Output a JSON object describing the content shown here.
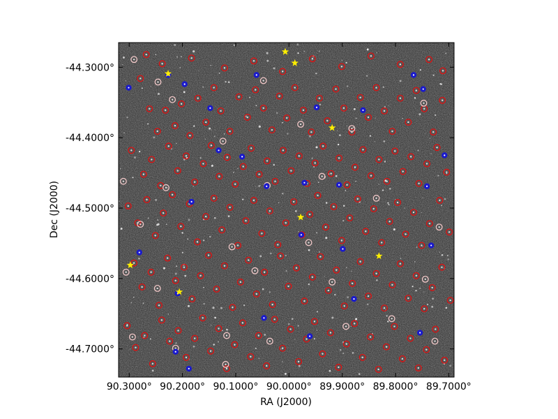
{
  "chart_data": {
    "type": "scatter",
    "title": "",
    "xlabel": "RA (J2000)",
    "ylabel": "Dec (J2000)",
    "xlim": [
      90.32,
      89.69
    ],
    "ylim": [
      -44.74,
      -44.265
    ],
    "x_ticks": [
      {
        "value": 90.3,
        "label": "90.3000°"
      },
      {
        "value": 90.2,
        "label": "90.2000°"
      },
      {
        "value": 90.1,
        "label": "90.1000°"
      },
      {
        "value": 90.0,
        "label": "90.0000°"
      },
      {
        "value": 89.9,
        "label": "89.9000°"
      },
      {
        "value": 89.8,
        "label": "89.8000°"
      },
      {
        "value": 89.7,
        "label": "89.7000°"
      }
    ],
    "y_ticks": [
      {
        "value": -44.3,
        "label": "-44.3000°"
      },
      {
        "value": -44.4,
        "label": "-44.4000°"
      },
      {
        "value": -44.5,
        "label": "-44.5000°"
      },
      {
        "value": -44.6,
        "label": "-44.6000°"
      },
      {
        "value": -44.7,
        "label": "-44.7000°"
      }
    ],
    "background": "sky image (grayscale noise)",
    "legend": "none",
    "grid": false,
    "series": [
      {
        "marker": "circle",
        "color": "#e01010",
        "points": [
          [
            90.279,
            -44.316
          ],
          [
            90.262,
            -44.359
          ],
          [
            90.247,
            -44.391
          ],
          [
            90.232,
            -44.361
          ],
          [
            90.214,
            -44.383
          ],
          [
            90.202,
            -44.352
          ],
          [
            90.186,
            -44.397
          ],
          [
            90.171,
            -44.344
          ],
          [
            90.156,
            -44.378
          ],
          [
            90.141,
            -44.329
          ],
          [
            90.128,
            -44.362
          ],
          [
            90.111,
            -44.391
          ],
          [
            90.094,
            -44.342
          ],
          [
            90.078,
            -44.371
          ],
          [
            90.063,
            -44.332
          ],
          [
            90.048,
            -44.358
          ],
          [
            90.032,
            -44.389
          ],
          [
            90.018,
            -44.341
          ],
          [
            90.004,
            -44.372
          ],
          [
            89.989,
            -44.329
          ],
          [
            89.973,
            -44.361
          ],
          [
            89.958,
            -44.392
          ],
          [
            89.943,
            -44.344
          ],
          [
            89.928,
            -44.376
          ],
          [
            89.912,
            -44.331
          ],
          [
            89.897,
            -44.358
          ],
          [
            89.882,
            -44.392
          ],
          [
            89.866,
            -44.343
          ],
          [
            89.851,
            -44.371
          ],
          [
            89.836,
            -44.329
          ],
          [
            89.821,
            -44.362
          ],
          [
            89.806,
            -44.391
          ],
          [
            89.791,
            -44.344
          ],
          [
            89.776,
            -44.378
          ],
          [
            89.761,
            -44.333
          ],
          [
            89.746,
            -44.359
          ],
          [
            89.729,
            -44.392
          ],
          [
            89.712,
            -44.347
          ],
          [
            90.296,
            -44.418
          ],
          [
            90.273,
            -44.452
          ],
          [
            90.258,
            -44.431
          ],
          [
            90.241,
            -44.468
          ],
          [
            90.226,
            -44.412
          ],
          [
            90.209,
            -44.447
          ],
          [
            90.193,
            -44.426
          ],
          [
            90.177,
            -44.463
          ],
          [
            90.161,
            -44.437
          ],
          [
            90.146,
            -44.411
          ],
          [
            90.131,
            -44.455
          ],
          [
            90.116,
            -44.428
          ],
          [
            90.101,
            -44.466
          ],
          [
            90.086,
            -44.441
          ],
          [
            90.071,
            -44.415
          ],
          [
            90.056,
            -44.452
          ],
          [
            90.041,
            -44.433
          ],
          [
            90.026,
            -44.462
          ],
          [
            90.011,
            -44.418
          ],
          [
            89.996,
            -44.447
          ],
          [
            89.981,
            -44.426
          ],
          [
            89.966,
            -44.465
          ],
          [
            89.951,
            -44.436
          ],
          [
            89.936,
            -44.412
          ],
          [
            89.921,
            -44.451
          ],
          [
            89.906,
            -44.429
          ],
          [
            89.891,
            -44.467
          ],
          [
            89.876,
            -44.442
          ],
          [
            89.861,
            -44.417
          ],
          [
            89.846,
            -44.454
          ],
          [
            89.831,
            -44.431
          ],
          [
            89.816,
            -44.462
          ],
          [
            89.801,
            -44.419
          ],
          [
            89.786,
            -44.448
          ],
          [
            89.771,
            -44.427
          ],
          [
            89.756,
            -44.465
          ],
          [
            89.741,
            -44.437
          ],
          [
            89.722,
            -44.414
          ],
          [
            89.704,
            -44.449
          ],
          [
            90.302,
            -44.497
          ],
          [
            90.284,
            -44.521
          ],
          [
            90.267,
            -44.488
          ],
          [
            90.251,
            -44.539
          ],
          [
            90.236,
            -44.507
          ],
          [
            90.219,
            -44.481
          ],
          [
            90.203,
            -44.526
          ],
          [
            90.187,
            -44.494
          ],
          [
            90.172,
            -44.548
          ],
          [
            90.156,
            -44.512
          ],
          [
            90.141,
            -44.486
          ],
          [
            90.126,
            -44.531
          ],
          [
            90.111,
            -44.499
          ],
          [
            90.096,
            -44.553
          ],
          [
            90.081,
            -44.518
          ],
          [
            90.066,
            -44.489
          ],
          [
            90.051,
            -44.536
          ],
          [
            90.036,
            -44.504
          ],
          [
            90.021,
            -44.552
          ],
          [
            90.006,
            -44.521
          ],
          [
            89.991,
            -44.491
          ],
          [
            89.976,
            -44.538
          ],
          [
            89.961,
            -44.509
          ],
          [
            89.946,
            -44.482
          ],
          [
            89.931,
            -44.527
          ],
          [
            89.916,
            -44.498
          ],
          [
            89.901,
            -44.546
          ],
          [
            89.886,
            -44.514
          ],
          [
            89.871,
            -44.487
          ],
          [
            89.856,
            -44.533
          ],
          [
            89.841,
            -44.501
          ],
          [
            89.826,
            -44.549
          ],
          [
            89.811,
            -44.519
          ],
          [
            89.796,
            -44.492
          ],
          [
            89.781,
            -44.537
          ],
          [
            89.766,
            -44.506
          ],
          [
            89.751,
            -44.553
          ],
          [
            89.736,
            -44.522
          ],
          [
            89.717,
            -44.489
          ],
          [
            89.699,
            -44.534
          ],
          [
            90.291,
            -44.578
          ],
          [
            90.276,
            -44.612
          ],
          [
            90.259,
            -44.591
          ],
          [
            90.244,
            -44.638
          ],
          [
            90.228,
            -44.571
          ],
          [
            90.213,
            -44.603
          ],
          [
            90.197,
            -44.584
          ],
          [
            90.182,
            -44.629
          ],
          [
            90.166,
            -44.596
          ],
          [
            90.151,
            -44.567
          ],
          [
            90.136,
            -44.615
          ],
          [
            90.121,
            -44.582
          ],
          [
            90.106,
            -44.641
          ],
          [
            90.091,
            -44.605
          ],
          [
            90.076,
            -44.574
          ],
          [
            90.061,
            -44.622
          ],
          [
            90.046,
            -44.591
          ],
          [
            90.031,
            -44.637
          ],
          [
            90.016,
            -44.568
          ],
          [
            90.001,
            -44.611
          ],
          [
            89.986,
            -44.585
          ],
          [
            89.971,
            -44.632
          ],
          [
            89.956,
            -44.598
          ],
          [
            89.941,
            -44.569
          ],
          [
            89.926,
            -44.617
          ],
          [
            89.911,
            -44.588
          ],
          [
            89.896,
            -44.639
          ],
          [
            89.881,
            -44.607
          ],
          [
            89.866,
            -44.576
          ],
          [
            89.851,
            -44.625
          ],
          [
            89.836,
            -44.593
          ],
          [
            89.821,
            -44.642
          ],
          [
            89.806,
            -44.609
          ],
          [
            89.791,
            -44.579
          ],
          [
            89.776,
            -44.628
          ],
          [
            89.761,
            -44.596
          ],
          [
            89.746,
            -44.643
          ],
          [
            89.731,
            -44.613
          ],
          [
            89.713,
            -44.584
          ],
          [
            89.697,
            -44.631
          ],
          [
            90.304,
            -44.667
          ],
          [
            90.288,
            -44.698
          ],
          [
            90.271,
            -44.681
          ],
          [
            90.256,
            -44.721
          ],
          [
            90.239,
            -44.659
          ],
          [
            90.224,
            -44.689
          ],
          [
            90.208,
            -44.674
          ],
          [
            90.193,
            -44.712
          ],
          [
            90.177,
            -44.685
          ],
          [
            90.162,
            -44.656
          ],
          [
            90.147,
            -44.703
          ],
          [
            90.132,
            -44.671
          ],
          [
            90.117,
            -44.728
          ],
          [
            90.102,
            -44.694
          ],
          [
            90.087,
            -44.663
          ],
          [
            90.072,
            -44.711
          ],
          [
            90.057,
            -44.681
          ],
          [
            90.042,
            -44.724
          ],
          [
            90.027,
            -44.658
          ],
          [
            90.012,
            -44.699
          ],
          [
            89.997,
            -44.672
          ],
          [
            89.982,
            -44.718
          ],
          [
            89.967,
            -44.686
          ],
          [
            89.952,
            -44.661
          ],
          [
            89.937,
            -44.707
          ],
          [
            89.922,
            -44.677
          ],
          [
            89.907,
            -44.726
          ],
          [
            89.892,
            -44.693
          ],
          [
            89.877,
            -44.664
          ],
          [
            89.862,
            -44.712
          ],
          [
            89.847,
            -44.683
          ],
          [
            89.832,
            -44.729
          ],
          [
            89.817,
            -44.697
          ],
          [
            89.802,
            -44.668
          ],
          [
            89.787,
            -44.714
          ],
          [
            89.772,
            -44.685
          ],
          [
            89.757,
            -44.727
          ],
          [
            89.742,
            -44.701
          ],
          [
            89.725,
            -44.672
          ],
          [
            89.708,
            -44.716
          ],
          [
            90.268,
            -44.282
          ],
          [
            90.238,
            -44.295
          ],
          [
            90.183,
            -44.287
          ],
          [
            90.121,
            -44.301
          ],
          [
            90.066,
            -44.291
          ],
          [
            90.012,
            -44.306
          ],
          [
            89.956,
            -44.288
          ],
          [
            89.901,
            -44.299
          ],
          [
            89.846,
            -44.284
          ],
          [
            89.791,
            -44.296
          ],
          [
            89.737,
            -44.289
          ],
          [
            89.711,
            -44.305
          ]
        ]
      },
      {
        "marker": "circle",
        "color": "#f2c8c8",
        "points": [
          [
            90.291,
            -44.289
          ],
          [
            90.246,
            -44.321
          ],
          [
            90.219,
            -44.346
          ],
          [
            90.124,
            -44.405
          ],
          [
            90.048,
            -44.319
          ],
          [
            89.978,
            -44.381
          ],
          [
            89.938,
            -44.455
          ],
          [
            89.882,
            -44.387
          ],
          [
            89.747,
            -44.351
          ],
          [
            90.311,
            -44.462
          ],
          [
            90.279,
            -44.523
          ],
          [
            90.231,
            -44.471
          ],
          [
            90.107,
            -44.555
          ],
          [
            90.041,
            -44.468
          ],
          [
            89.963,
            -44.549
          ],
          [
            89.836,
            -44.486
          ],
          [
            89.718,
            -44.527
          ],
          [
            90.306,
            -44.591
          ],
          [
            90.247,
            -44.614
          ],
          [
            90.117,
            -44.681
          ],
          [
            90.064,
            -44.589
          ],
          [
            89.919,
            -44.605
          ],
          [
            89.807,
            -44.657
          ],
          [
            89.744,
            -44.601
          ],
          [
            90.294,
            -44.683
          ],
          [
            90.213,
            -44.699
          ],
          [
            90.119,
            -44.722
          ],
          [
            90.036,
            -44.689
          ],
          [
            89.893,
            -44.668
          ],
          [
            89.726,
            -44.689
          ]
        ]
      },
      {
        "marker": "filled",
        "color": "#1a1acc",
        "points": [
          [
            90.301,
            -44.329
          ],
          [
            90.227,
            -44.311
          ],
          [
            90.196,
            -44.324
          ],
          [
            90.148,
            -44.358
          ],
          [
            90.061,
            -44.311
          ],
          [
            89.948,
            -44.357
          ],
          [
            89.861,
            -44.361
          ],
          [
            89.766,
            -44.311
          ],
          [
            89.748,
            -44.331
          ],
          [
            90.183,
            -44.491
          ],
          [
            90.132,
            -44.418
          ],
          [
            90.088,
            -44.427
          ],
          [
            90.042,
            -44.469
          ],
          [
            89.971,
            -44.464
          ],
          [
            89.906,
            -44.467
          ],
          [
            89.741,
            -44.469
          ],
          [
            89.708,
            -44.425
          ],
          [
            90.281,
            -44.563
          ],
          [
            90.209,
            -44.621
          ],
          [
            89.977,
            -44.538
          ],
          [
            89.899,
            -44.558
          ],
          [
            89.733,
            -44.553
          ],
          [
            90.047,
            -44.656
          ],
          [
            89.961,
            -44.682
          ],
          [
            89.878,
            -44.629
          ],
          [
            89.754,
            -44.677
          ],
          [
            90.213,
            -44.704
          ],
          [
            90.188,
            -44.728
          ]
        ]
      },
      {
        "marker": "star",
        "color": "#ffef00",
        "points": [
          [
            90.227,
            -44.309
          ],
          [
            90.007,
            -44.278
          ],
          [
            89.989,
            -44.294
          ],
          [
            89.919,
            -44.386
          ],
          [
            89.978,
            -44.513
          ],
          [
            89.831,
            -44.568
          ],
          [
            90.298,
            -44.581
          ],
          [
            90.206,
            -44.619
          ]
        ]
      }
    ]
  }
}
